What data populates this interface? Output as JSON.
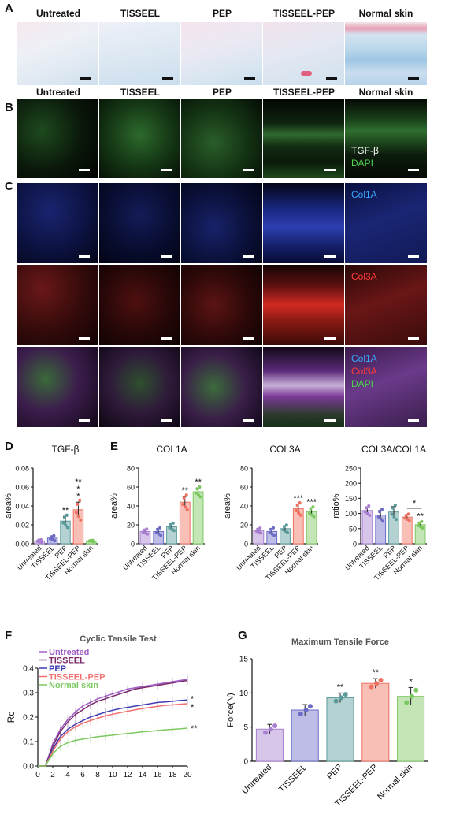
{
  "panel_letters": {
    "a": "A",
    "b": "B",
    "c": "C",
    "d": "D",
    "e": "E",
    "f": "F",
    "g": "G"
  },
  "groups": [
    "Untreated",
    "TISSEEL",
    "PEP",
    "TISSEEL-PEP",
    "Normal skin"
  ],
  "row_b_labels": {
    "l1": "TGF-β",
    "l2": "DAPI"
  },
  "row_c_labels": {
    "col1a": "Col1A",
    "col3a": "Col3A",
    "merge1": "Col1A",
    "merge2": "Col3A",
    "merge3": "DAPI"
  },
  "colors": {
    "untreated": "#a87fd0",
    "tisseel": "#6c6cc8",
    "pep": "#5a9a9a",
    "tisseel_pep": "#f07060",
    "normal_skin": "#7cc860"
  },
  "chart_data": [
    {
      "type": "bar",
      "id": "D",
      "title": "TGF-β",
      "ylabel": "area%",
      "categories": [
        "Untreated",
        "TISSEEL",
        "PEP",
        "TISSEEL-PEP",
        "Normal skin"
      ],
      "values": [
        0.003,
        0.006,
        0.024,
        0.036,
        0.003
      ],
      "errors": [
        0.001,
        0.002,
        0.005,
        0.008,
        0.0005
      ],
      "ylim": [
        0,
        0.08
      ],
      "yticks": [
        "0.00",
        "0.02",
        "0.04",
        "0.06",
        "0.08"
      ],
      "significance": [
        "",
        "",
        "**",
        "**\n*\n*",
        ""
      ]
    },
    {
      "type": "bar",
      "id": "E1",
      "title": "COL1A",
      "ylabel": "area%",
      "categories": [
        "Untreated",
        "TISSEEL",
        "PEP",
        "TISSEEL-PEP",
        "Normal skin"
      ],
      "values": [
        13,
        13,
        18,
        44,
        55
      ],
      "errors": [
        2,
        3,
        3,
        6,
        4
      ],
      "ylim": [
        0,
        80
      ],
      "yticks": [
        "0",
        "20",
        "40",
        "60",
        "80"
      ],
      "significance": [
        "",
        "",
        "",
        "**",
        "**"
      ]
    },
    {
      "type": "bar",
      "id": "E2",
      "title": "COL3A",
      "ylabel": "area%",
      "categories": [
        "Untreated",
        "TISSEEL",
        "PEP",
        "TISSEEL-PEP",
        "Normal skin"
      ],
      "values": [
        14,
        13,
        16,
        37,
        34
      ],
      "errors": [
        2,
        3,
        3,
        5,
        4
      ],
      "ylim": [
        0,
        80
      ],
      "yticks": [
        "0",
        "20",
        "40",
        "60",
        "80"
      ],
      "significance": [
        "",
        "",
        "",
        "***",
        "***"
      ]
    },
    {
      "type": "bar",
      "id": "E3",
      "title": "COL3A/COL1A",
      "ylabel": "ratio%",
      "categories": [
        "Untreated",
        "TISSEEL",
        "PEP",
        "TISSEEL-PEP",
        "Normal skin"
      ],
      "values": [
        110,
        95,
        105,
        88,
        63
      ],
      "errors": [
        12,
        15,
        18,
        8,
        8
      ],
      "ylim": [
        0,
        250
      ],
      "yticks": [
        "0",
        "50",
        "100",
        "150",
        "200",
        "250"
      ],
      "significance": [
        "",
        "",
        "",
        "",
        "**"
      ],
      "bracket": "*"
    },
    {
      "type": "line",
      "id": "F",
      "title": "Cyclic Tensile Test",
      "ylabel": "Rc",
      "x": [
        0,
        1,
        2,
        3,
        4,
        5,
        6,
        7,
        8,
        9,
        10,
        11,
        12,
        13,
        14,
        15,
        16,
        17,
        18,
        19,
        20
      ],
      "xticks": [
        "0",
        "2",
        "4",
        "6",
        "8",
        "10",
        "12",
        "14",
        "16",
        "18",
        "20"
      ],
      "yticks": [
        "0.0",
        "0.1",
        "0.2",
        "0.3",
        "0.4"
      ],
      "ylim": [
        0,
        0.4
      ],
      "series": [
        {
          "name": "Untreated",
          "values": [
            0,
            0,
            0.09,
            0.15,
            0.19,
            0.22,
            0.245,
            0.26,
            0.275,
            0.285,
            0.295,
            0.305,
            0.315,
            0.32,
            0.325,
            0.33,
            0.335,
            0.34,
            0.345,
            0.35,
            0.355
          ]
        },
        {
          "name": "TISSEEL",
          "values": [
            0,
            0,
            0.08,
            0.14,
            0.18,
            0.21,
            0.23,
            0.25,
            0.265,
            0.275,
            0.285,
            0.295,
            0.305,
            0.315,
            0.32,
            0.325,
            0.33,
            0.335,
            0.34,
            0.345,
            0.35
          ]
        },
        {
          "name": "PEP",
          "values": [
            0,
            0,
            0.07,
            0.12,
            0.15,
            0.17,
            0.185,
            0.2,
            0.21,
            0.22,
            0.228,
            0.235,
            0.24,
            0.245,
            0.25,
            0.255,
            0.26,
            0.262,
            0.265,
            0.268,
            0.27
          ]
        },
        {
          "name": "TISSEEL-PEP",
          "values": [
            0,
            0,
            0.06,
            0.11,
            0.14,
            0.16,
            0.175,
            0.185,
            0.195,
            0.205,
            0.212,
            0.218,
            0.224,
            0.23,
            0.235,
            0.24,
            0.244,
            0.248,
            0.25,
            0.253,
            0.255
          ]
        },
        {
          "name": "Normal skin",
          "values": [
            0,
            0,
            0.05,
            0.08,
            0.095,
            0.105,
            0.11,
            0.115,
            0.12,
            0.123,
            0.126,
            0.13,
            0.133,
            0.136,
            0.14,
            0.142,
            0.145,
            0.148,
            0.15,
            0.152,
            0.155
          ]
        }
      ],
      "end_significance": [
        "*",
        "*",
        "**"
      ]
    },
    {
      "type": "bar",
      "id": "G",
      "title": "Maximum Tensile Force",
      "ylabel": "Force(N)",
      "categories": [
        "Untreated",
        "TISSEEL",
        "PEP",
        "TISSEEL-PEP",
        "Normal skin"
      ],
      "values": [
        4.7,
        7.5,
        9.3,
        11.4,
        9.5
      ],
      "errors": [
        0.7,
        0.8,
        0.7,
        0.7,
        1.3
      ],
      "ylim": [
        0,
        15
      ],
      "yticks": [
        "0",
        "5",
        "10",
        "15"
      ],
      "significance": [
        "",
        "",
        "**",
        "**",
        "*"
      ]
    }
  ]
}
